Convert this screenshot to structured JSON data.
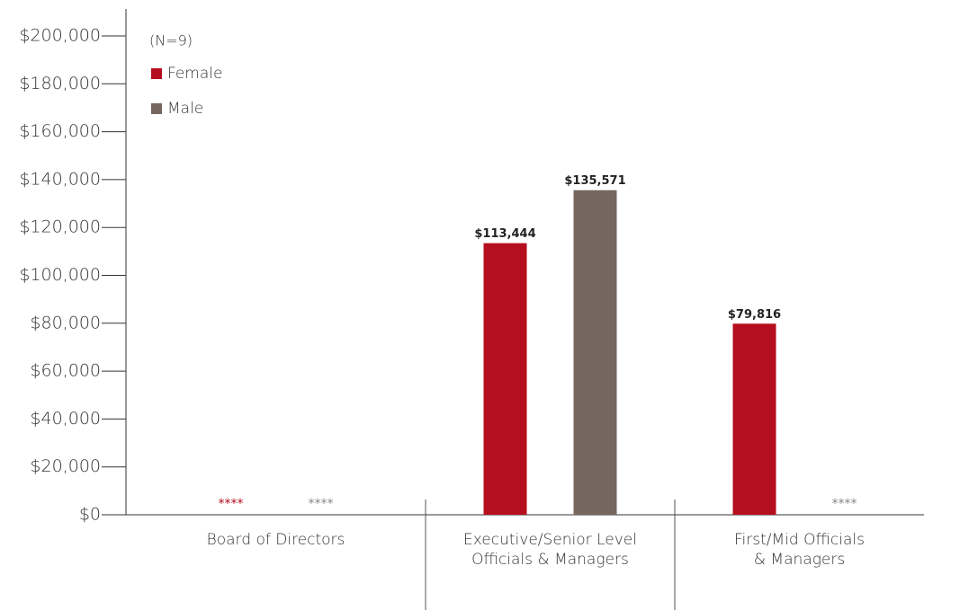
{
  "chart_data": {
    "type": "bar",
    "categories": [
      "Board of Directors",
      "Executive/Senior Level\nOfficials & Managers",
      "First/Mid Officials\n& Managers"
    ],
    "legend_title": "(N=9)",
    "series": [
      {
        "name": "Female",
        "color": "#b50e1e",
        "values": [
          null,
          113444,
          79816
        ],
        "value_labels": [
          "****",
          "$113,444",
          "$79,816"
        ]
      },
      {
        "name": "Male",
        "color": "#75665e",
        "values": [
          null,
          135571,
          null
        ],
        "value_labels": [
          "****",
          "$135,571",
          "****"
        ]
      }
    ],
    "ylim": [
      0,
      200000
    ],
    "yticks": [
      {
        "value": 0,
        "label": "$0"
      },
      {
        "value": 20000,
        "label": "$20,000"
      },
      {
        "value": 40000,
        "label": "$40,000"
      },
      {
        "value": 60000,
        "label": "$60,000"
      },
      {
        "value": 80000,
        "label": "$80,000"
      },
      {
        "value": 100000,
        "label": "$100,000"
      },
      {
        "value": 120000,
        "label": "$120,000"
      },
      {
        "value": 140000,
        "label": "$140,000"
      },
      {
        "value": 160000,
        "label": "$160,000"
      },
      {
        "value": 180000,
        "label": "$180,000"
      },
      {
        "value": 200000,
        "label": "$200,000"
      }
    ],
    "legend": "upper left"
  }
}
